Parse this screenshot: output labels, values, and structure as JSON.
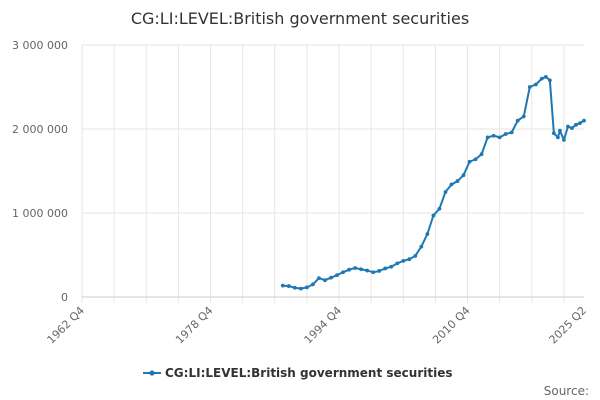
{
  "chart_data": {
    "type": "line",
    "title": "CG:LI:LEVEL:British government securities",
    "xlabel": "",
    "ylabel": "",
    "x_ticks": [
      "1962 Q4",
      "1978 Q4",
      "1994 Q4",
      "2010 Q4",
      "2025 Q2"
    ],
    "y_ticks": [
      {
        "value": 0,
        "label": "0"
      },
      {
        "value": 1000000,
        "label": "1 000 000"
      },
      {
        "value": 2000000,
        "label": "2 000 000"
      },
      {
        "value": 3000000,
        "label": "3 000 000"
      }
    ],
    "xlim": [
      1962.75,
      2025.25
    ],
    "ylim": [
      0,
      3000000
    ],
    "grid": true,
    "legend_position": "bottom",
    "source_label": "Source:",
    "series": [
      {
        "name": "CG:LI:LEVEL:British government securities",
        "color": "#1f78b4",
        "x": [
          1987.75,
          1988.5,
          1989.25,
          1990.0,
          1990.75,
          1991.5,
          1992.25,
          1993.0,
          1993.75,
          1994.5,
          1995.25,
          1996.0,
          1996.75,
          1997.5,
          1998.25,
          1999.0,
          1999.75,
          2000.5,
          2001.25,
          2002.0,
          2002.75,
          2003.5,
          2004.25,
          2005.0,
          2005.75,
          2006.5,
          2007.25,
          2008.0,
          2008.75,
          2009.5,
          2010.25,
          2011.0,
          2011.75,
          2012.5,
          2013.25,
          2014.0,
          2014.75,
          2015.5,
          2016.25,
          2017.0,
          2017.75,
          2018.5,
          2019.25,
          2020.0,
          2020.5,
          2021.0,
          2021.5,
          2022.0,
          2022.25,
          2022.75,
          2023.25,
          2023.75,
          2024.25,
          2024.75,
          2025.25
        ],
        "y": [
          135000,
          130000,
          110000,
          100000,
          115000,
          150000,
          225000,
          200000,
          230000,
          260000,
          295000,
          325000,
          345000,
          330000,
          315000,
          295000,
          310000,
          340000,
          360000,
          400000,
          430000,
          450000,
          490000,
          600000,
          750000,
          970000,
          1050000,
          1250000,
          1340000,
          1380000,
          1450000,
          1610000,
          1640000,
          1700000,
          1900000,
          1920000,
          1900000,
          1940000,
          1960000,
          2100000,
          2150000,
          2500000,
          2530000,
          2600000,
          2620000,
          2580000,
          1950000,
          1900000,
          1980000,
          1870000,
          2030000,
          2010000,
          2050000,
          2070000,
          2100000
        ]
      }
    ]
  }
}
